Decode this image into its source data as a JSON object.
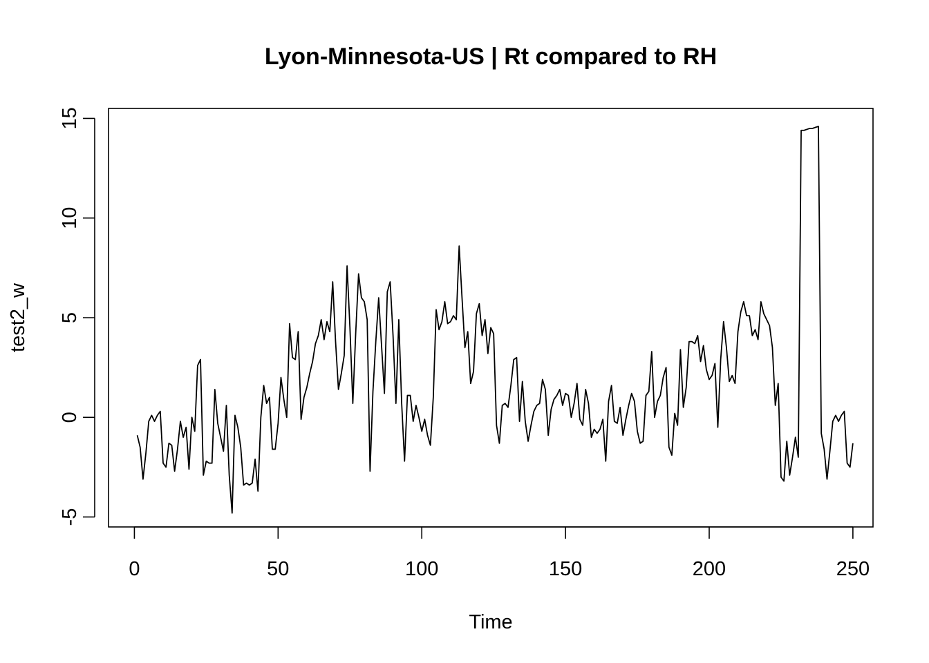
{
  "chart_data": {
    "type": "line",
    "title": "Lyon-Minnesota-US | Rt compared to RH",
    "xlabel": "Time",
    "ylabel": "test2_w",
    "xlim": [
      -9,
      257
    ],
    "ylim": [
      -5.5,
      15.5
    ],
    "xticks": [
      0,
      50,
      100,
      150,
      200,
      250
    ],
    "xtick_labels": [
      "0",
      "50",
      "100",
      "150",
      "200",
      "250"
    ],
    "yticks": [
      -5,
      0,
      5,
      10,
      15
    ],
    "ytick_labels": [
      "-5",
      "0",
      "5",
      "10",
      "15"
    ],
    "grid": false,
    "line_color": "#000000",
    "series": [
      {
        "x_start": 1,
        "values": [
          -0.9,
          -1.5,
          -3.1,
          -1.8,
          -0.2,
          0.1,
          -0.2,
          0.1,
          0.3,
          -2.3,
          -2.5,
          -1.3,
          -1.4,
          -2.7,
          -1.6,
          -0.2,
          -1.0,
          -0.5,
          -2.6,
          0.0,
          -0.7,
          2.6,
          2.9,
          -2.9,
          -2.2,
          -2.3,
          -2.3,
          1.4,
          -0.3,
          -1.0,
          -1.7,
          0.6,
          -2.9,
          -4.8,
          0.1,
          -0.5,
          -1.5,
          -3.4,
          -3.3,
          -3.4,
          -3.3,
          -2.1,
          -3.7,
          0.0,
          1.6,
          0.7,
          1.0,
          -1.6,
          -1.6,
          -0.3,
          2.0,
          0.9,
          0.0,
          4.7,
          3.0,
          2.9,
          4.3,
          -0.1,
          1.0,
          1.5,
          2.2,
          2.8,
          3.7,
          4.1,
          4.9,
          3.9,
          4.8,
          4.3,
          6.8,
          3.8,
          1.4,
          2.2,
          3.1,
          7.6,
          4.5,
          0.7,
          4.2,
          7.2,
          6.0,
          5.8,
          4.9,
          -2.7,
          1.3,
          3.8,
          6.0,
          3.6,
          1.2,
          6.3,
          6.8,
          4.1,
          0.7,
          4.9,
          0.7,
          -2.2,
          1.1,
          1.1,
          -0.2,
          0.6,
          0.0,
          -0.7,
          -0.1,
          -0.9,
          -1.4,
          1.0,
          5.4,
          4.4,
          4.8,
          5.8,
          4.7,
          4.8,
          5.1,
          4.9,
          8.6,
          6.0,
          3.5,
          4.3,
          1.7,
          2.3,
          5.2,
          5.7,
          4.1,
          4.9,
          3.2,
          4.5,
          4.2,
          -0.4,
          -1.3,
          0.6,
          0.7,
          0.5,
          1.6,
          2.9,
          3.0,
          -0.2,
          1.8,
          -0.2,
          -1.2,
          -0.4,
          0.3,
          0.6,
          0.7,
          1.9,
          1.4,
          -0.9,
          0.4,
          0.9,
          1.1,
          1.4,
          0.6,
          1.2,
          1.1,
          0.0,
          0.7,
          1.7,
          -0.1,
          -0.4,
          1.4,
          0.7,
          -1.0,
          -0.6,
          -0.8,
          -0.6,
          -0.1,
          -2.2,
          0.8,
          1.6,
          -0.2,
          -0.3,
          0.5,
          -0.9,
          -0.1,
          0.6,
          1.2,
          0.8,
          -0.7,
          -1.3,
          -1.2,
          1.1,
          1.3,
          3.3,
          0.0,
          0.8,
          1.1,
          2.0,
          2.5,
          -1.5,
          -1.9,
          0.2,
          -0.4,
          3.4,
          0.5,
          1.5,
          3.8,
          3.8,
          3.7,
          4.1,
          2.8,
          3.6,
          2.4,
          1.9,
          2.1,
          2.7,
          -0.5,
          2.9,
          4.8,
          3.5,
          1.8,
          2.1,
          1.7,
          4.3,
          5.3,
          5.8,
          5.1,
          5.1,
          4.1,
          4.4,
          3.9,
          5.8,
          5.2,
          4.9,
          4.6,
          3.5,
          0.6,
          1.7,
          -3.0,
          -3.2,
          -1.2,
          -2.9,
          -2.0,
          -1.0,
          -2.0,
          14.4,
          14.4,
          14.45,
          14.5,
          14.5,
          14.55,
          14.6,
          -0.8,
          -1.6,
          -3.1,
          -1.7,
          -0.2,
          0.1,
          -0.2,
          0.1,
          0.3,
          -2.3,
          -2.5,
          -1.3
        ]
      }
    ]
  }
}
